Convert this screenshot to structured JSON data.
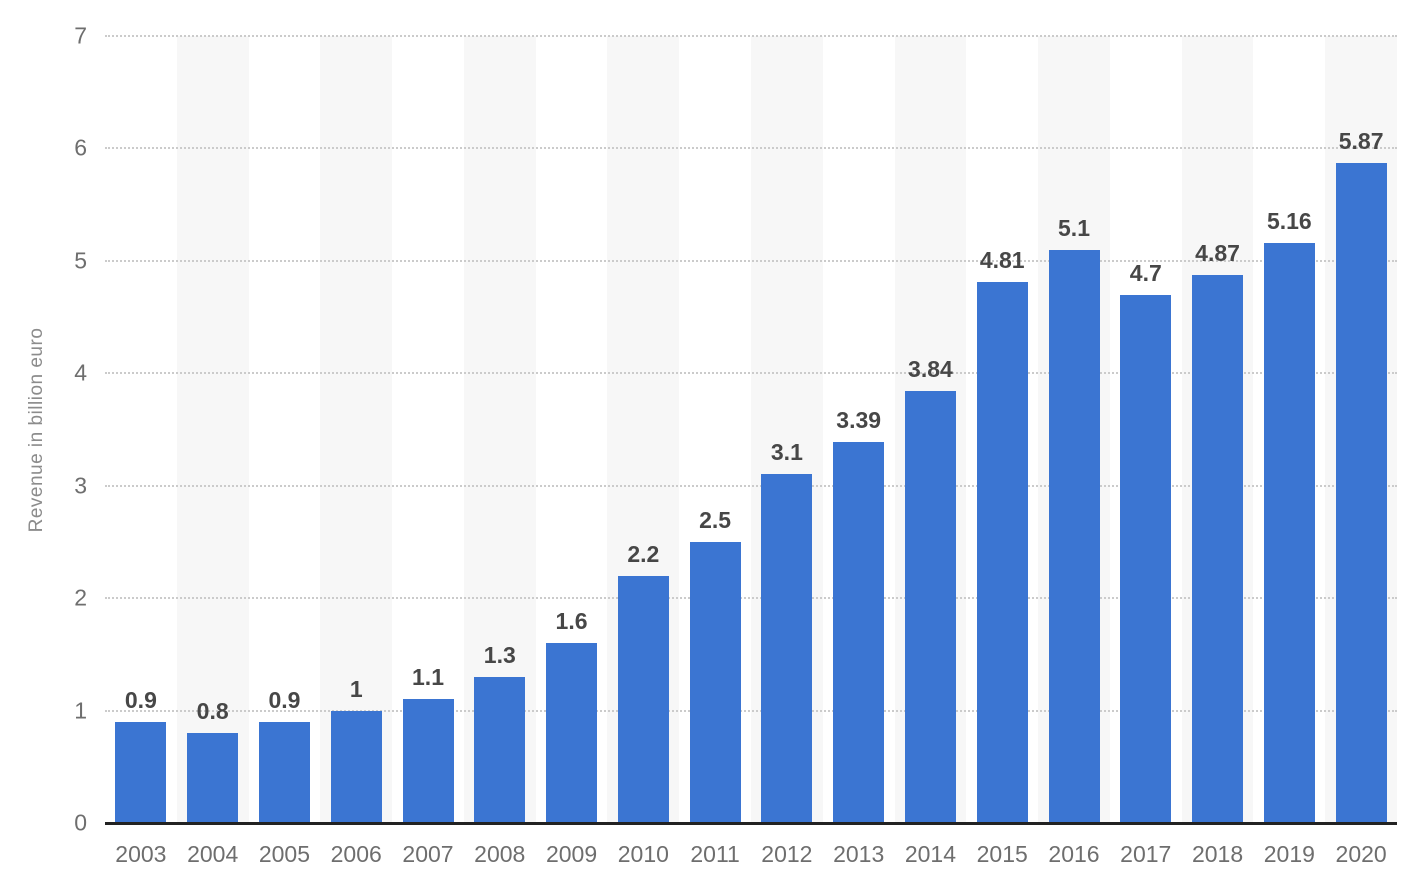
{
  "chart_data": {
    "type": "bar",
    "title": "",
    "xlabel": "",
    "ylabel": "Revenue in billion euro",
    "categories": [
      "2003",
      "2004",
      "2005",
      "2006",
      "2007",
      "2008",
      "2009",
      "2010",
      "2011",
      "2012",
      "2013",
      "2014",
      "2015",
      "2016",
      "2017",
      "2018",
      "2019",
      "2020"
    ],
    "values": [
      0.9,
      0.8,
      0.9,
      1,
      1.1,
      1.3,
      1.6,
      2.2,
      2.5,
      3.1,
      3.39,
      3.84,
      4.81,
      5.1,
      4.7,
      4.87,
      5.16,
      5.87
    ],
    "value_labels": [
      "0.9",
      "0.8",
      "0.9",
      "1",
      "1.1",
      "1.3",
      "1.6",
      "2.2",
      "2.5",
      "3.1",
      "3.39",
      "3.84",
      "4.81",
      "5.1",
      "4.7",
      "4.87",
      "5.16",
      "5.87"
    ],
    "ylim": [
      0,
      7
    ],
    "yticks": [
      0,
      1,
      2,
      3,
      4,
      5,
      6,
      7
    ],
    "grid": "horizontal-dotted",
    "legend": "none",
    "stripe_pattern": "alternating columns starting at second category"
  },
  "colors": {
    "bar": "#3b75d2",
    "value_label": "#474747",
    "axis_label": "#6e6e6e",
    "y_axis_title": "#8c8c8c",
    "gridline": "#cbcbcb",
    "baseline": "#222222",
    "column_stripe": "#f7f7f7",
    "background": "#ffffff"
  }
}
